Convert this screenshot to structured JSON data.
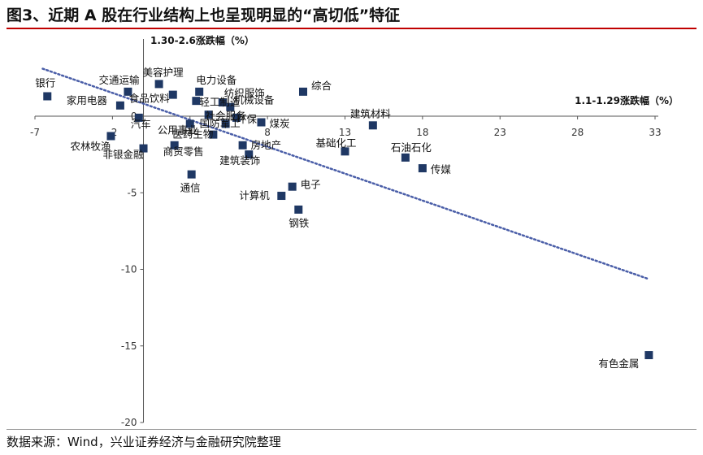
{
  "title": "图3、近期 A 股在行业结构上也呈现明显的“高切低”特征",
  "source": "数据来源：Wind，兴业证券经济与金融研究院整理",
  "colors": {
    "marker": "#1f3864",
    "trend": "#4a5ea8",
    "title_rule": "#c00000"
  },
  "chart_data": {
    "type": "scatter",
    "title": "",
    "xlabel": "1.1-1.29涨跌幅（%）",
    "ylabel": "1.30-2.6涨跌幅（%）",
    "xlim": [
      -7,
      33
    ],
    "ylim": [
      -20,
      3
    ],
    "xticks": [
      -7,
      -2,
      3,
      8,
      13,
      18,
      23,
      28,
      33
    ],
    "yticks": [
      -20,
      -15,
      -10,
      -5,
      0
    ],
    "grid": false,
    "trendline": {
      "x": [
        -6.5,
        32.5
      ],
      "y": [
        3.1,
        -10.6
      ],
      "style": "dotted"
    },
    "points": [
      {
        "name": "银行",
        "x": -6.2,
        "y": 1.3
      },
      {
        "name": "交通运输",
        "x": -1.0,
        "y": 1.6
      },
      {
        "name": "美容护理",
        "x": 1.0,
        "y": 2.1
      },
      {
        "name": "电力设备",
        "x": 3.6,
        "y": 1.6
      },
      {
        "name": "综合",
        "x": 10.3,
        "y": 1.6
      },
      {
        "name": "家用电器",
        "x": -1.5,
        "y": 0.7
      },
      {
        "name": "食品饮料",
        "x": 1.9,
        "y": 1.4
      },
      {
        "name": "纺织服饰",
        "x": 5.1,
        "y": 0.9
      },
      {
        "name": "轻工制造",
        "x": 3.4,
        "y": 1.0
      },
      {
        "name": "机械设备",
        "x": 5.6,
        "y": 0.6
      },
      {
        "name": "社会服务",
        "x": 4.2,
        "y": 0.1
      },
      {
        "name": "环保",
        "x": 6.0,
        "y": -0.1
      },
      {
        "name": "建筑材料",
        "x": 14.8,
        "y": -0.6
      },
      {
        "name": "汽车",
        "x": -0.3,
        "y": -0.1
      },
      {
        "name": "公用事业",
        "x": 3.0,
        "y": -0.5
      },
      {
        "name": "国防军工",
        "x": 5.3,
        "y": -0.5
      },
      {
        "name": "煤炭",
        "x": 7.6,
        "y": -0.4
      },
      {
        "name": "农林牧渔",
        "x": -2.1,
        "y": -1.3
      },
      {
        "name": "医药生物",
        "x": 4.5,
        "y": -1.2
      },
      {
        "name": "基础化工",
        "x": 13.0,
        "y": -2.3
      },
      {
        "name": "石油石化",
        "x": 16.9,
        "y": -2.7
      },
      {
        "name": "非银金融",
        "x": 0.0,
        "y": -2.1
      },
      {
        "name": "商贸零售",
        "x": 2.0,
        "y": -1.9
      },
      {
        "name": "房地产",
        "x": 6.4,
        "y": -1.9
      },
      {
        "name": "建筑装饰",
        "x": 6.8,
        "y": -2.5
      },
      {
        "name": "传媒",
        "x": 18.0,
        "y": -3.4
      },
      {
        "name": "通信",
        "x": 3.1,
        "y": -3.8
      },
      {
        "name": "电子",
        "x": 9.6,
        "y": -4.6
      },
      {
        "name": "计算机",
        "x": 8.9,
        "y": -5.2
      },
      {
        "name": "钢铁",
        "x": 10.0,
        "y": -6.1
      },
      {
        "name": "有色金属",
        "x": 32.6,
        "y": -15.6
      }
    ]
  }
}
